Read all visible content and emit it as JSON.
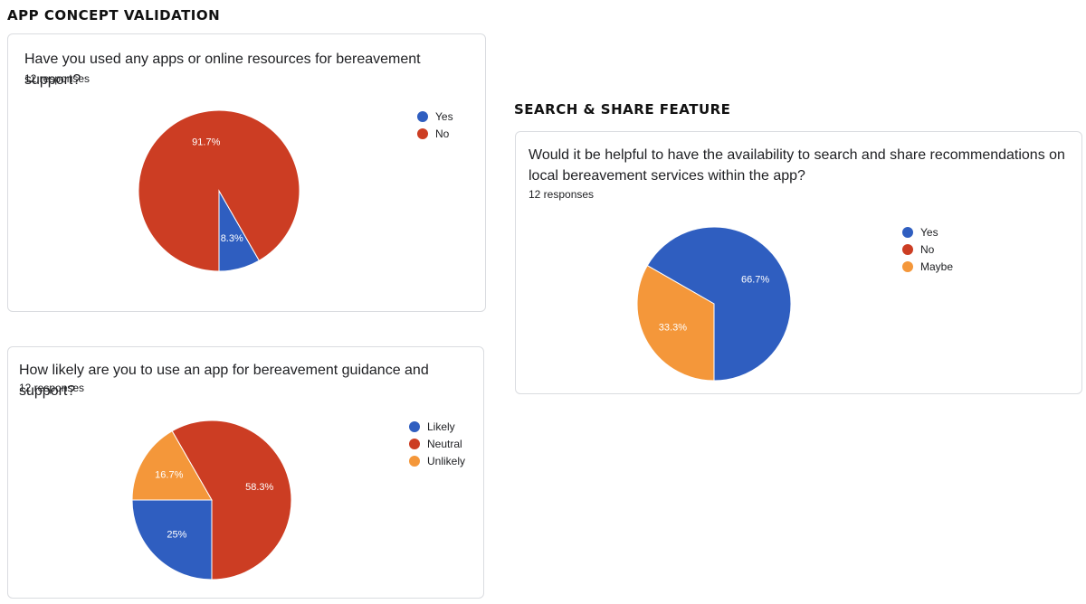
{
  "page": {
    "heading_left": "APP CONCEPT VALIDATION",
    "heading_right": "SEARCH & SHARE FEATURE"
  },
  "colors": {
    "blue": "#3366cc",
    "red": "#dc3912",
    "orange": "#ff9900"
  },
  "chart_data": [
    {
      "type": "pie",
      "title": "Have you used any apps or online resources for bereavement support?",
      "responses": "12 responses",
      "legend_position": "right",
      "series": [
        {
          "name": "Yes",
          "value": 8.3,
          "label": "8.3%",
          "color": "#2f5ec0"
        },
        {
          "name": "No",
          "value": 91.7,
          "label": "91.7%",
          "color": "#cc3d23"
        }
      ]
    },
    {
      "type": "pie",
      "title": "How likely are you to use an app for bereavement guidance and support?",
      "responses": "12 responses",
      "legend_position": "right",
      "series": [
        {
          "name": "Likely",
          "value": 25,
          "label": "25%",
          "color": "#2f5ec0"
        },
        {
          "name": "Neutral",
          "value": 58.3,
          "label": "58.3%",
          "color": "#cc3d23"
        },
        {
          "name": "Unlikely",
          "value": 16.7,
          "label": "16.7%",
          "color": "#f4973a"
        }
      ]
    },
    {
      "type": "pie",
      "title": "Would it be helpful to have the availability to search and share recommendations on local bereavement services within the app?",
      "responses": "12 responses",
      "legend_position": "right",
      "series": [
        {
          "name": "Yes",
          "value": 66.7,
          "label": "66.7%",
          "color": "#2f5ec0"
        },
        {
          "name": "No",
          "value": 0,
          "label": "",
          "color": "#cc3d23"
        },
        {
          "name": "Maybe",
          "value": 33.3,
          "label": "33.3%",
          "color": "#f4973a"
        }
      ]
    }
  ]
}
